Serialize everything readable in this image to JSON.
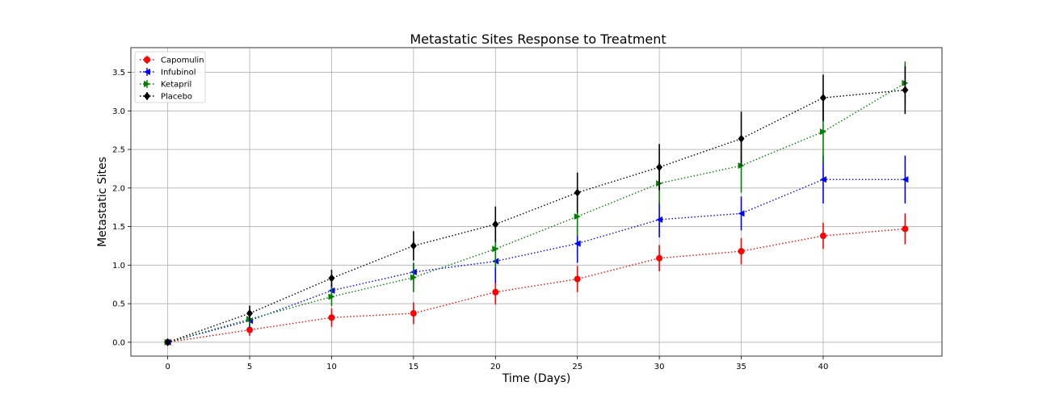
{
  "chart_data": {
    "type": "line",
    "title": "Metastatic Sites Response to Treatment",
    "xlabel": "Time (Days)",
    "ylabel": "Metastatic Sites",
    "x": [
      0,
      5,
      10,
      15,
      20,
      25,
      30,
      35,
      40,
      45
    ],
    "xticks": [
      0,
      5,
      10,
      15,
      20,
      25,
      30,
      35,
      40
    ],
    "yticks": [
      0.0,
      0.5,
      1.0,
      1.5,
      2.0,
      2.5,
      3.0,
      3.5
    ],
    "ytick_labels": [
      "0.0",
      "0.5",
      "1.0",
      "1.5",
      "2.0",
      "2.5",
      "3.0",
      "3.5"
    ],
    "xlim": [
      -2.25,
      47.25
    ],
    "ylim": [
      -0.18,
      3.82
    ],
    "grid": true,
    "legend_position": "top-left",
    "series": [
      {
        "name": "Capomulin",
        "color": "#ff0000",
        "marker": "circle",
        "values": [
          0.0,
          0.16,
          0.32,
          0.375,
          0.65,
          0.82,
          1.09,
          1.18,
          1.38,
          1.47
        ],
        "errors": [
          0.0,
          0.075,
          0.12,
          0.14,
          0.16,
          0.17,
          0.17,
          0.17,
          0.17,
          0.2
        ]
      },
      {
        "name": "Infubinol",
        "color": "#0000ff",
        "marker": "square",
        "values": [
          0.0,
          0.28,
          0.67,
          0.91,
          1.05,
          1.28,
          1.59,
          1.67,
          2.11,
          2.11
        ],
        "errors": [
          0.0,
          0.09,
          0.1,
          0.12,
          0.28,
          0.25,
          0.23,
          0.22,
          0.31,
          0.31
        ]
      },
      {
        "name": "Ketapril",
        "color": "#008000",
        "marker": "triangle-right",
        "values": [
          0.0,
          0.3,
          0.59,
          0.84,
          1.21,
          1.63,
          2.06,
          2.29,
          2.73,
          3.36
        ],
        "errors": [
          0.0,
          0.1,
          0.12,
          0.19,
          0.24,
          0.25,
          0.27,
          0.35,
          0.41,
          0.28
        ]
      },
      {
        "name": "Placebo",
        "color": "#000000",
        "marker": "diamond",
        "values": [
          0.0,
          0.375,
          0.83,
          1.25,
          1.53,
          1.94,
          2.27,
          2.64,
          3.17,
          3.27
        ],
        "errors": [
          0.0,
          0.1,
          0.11,
          0.19,
          0.23,
          0.26,
          0.3,
          0.35,
          0.3,
          0.31
        ]
      }
    ]
  }
}
